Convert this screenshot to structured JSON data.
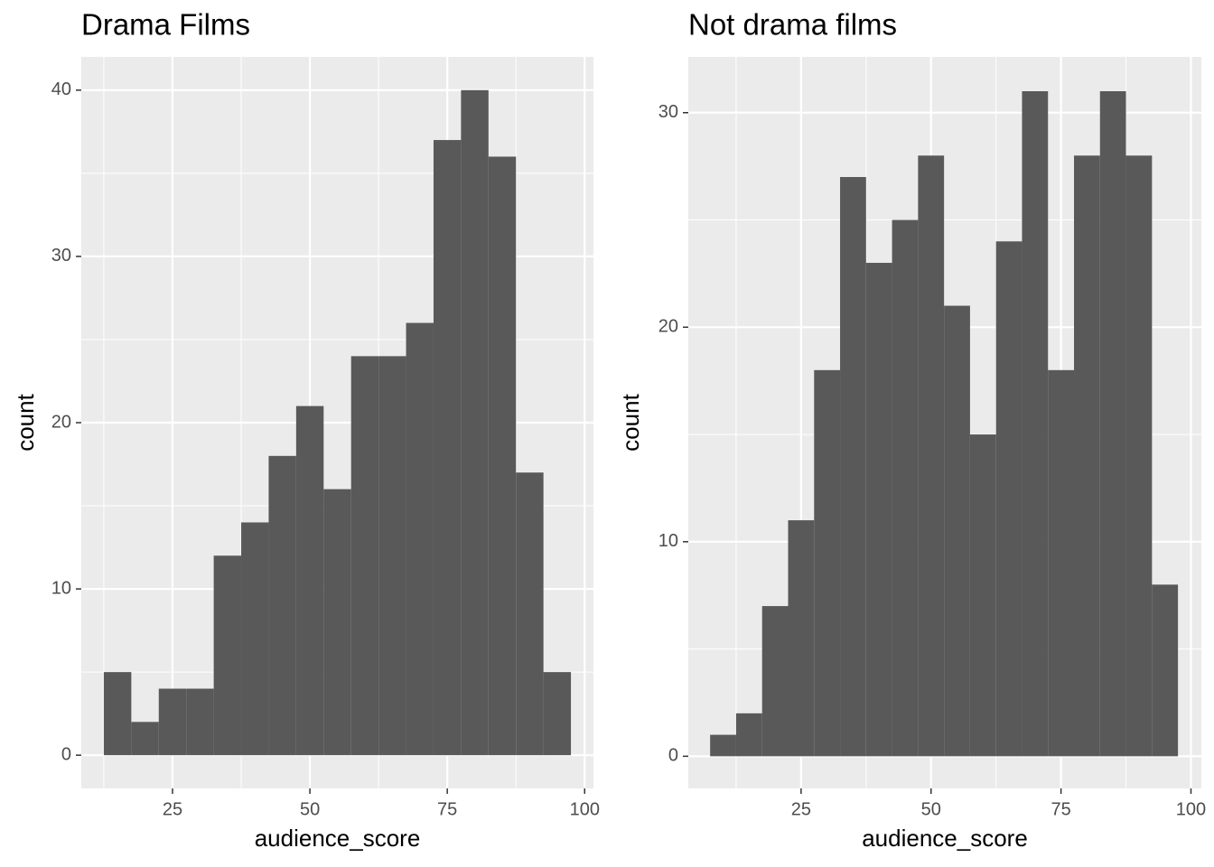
{
  "chart_data": [
    {
      "type": "histogram",
      "title": "Drama Films",
      "x_label": "audience_score",
      "y_label": "count",
      "color": "#595959",
      "bins": [
        12.5,
        17.5,
        22.5,
        27.5,
        32.5,
        37.5,
        42.5,
        47.5,
        52.5,
        57.5,
        62.5,
        67.5,
        72.5,
        77.5,
        82.5,
        87.5,
        92.5,
        97.5
      ],
      "values": [
        5,
        2,
        4,
        4,
        12,
        14,
        18,
        21,
        16,
        24,
        24,
        26,
        37,
        40,
        36,
        17,
        5
      ],
      "xlim": [
        8.4,
        101.6
      ],
      "xticks": [
        25,
        50,
        75,
        100
      ],
      "ylim": [
        -2,
        42
      ],
      "yticks": [
        0,
        10,
        20,
        30,
        40
      ],
      "grid": true
    },
    {
      "type": "histogram",
      "title": "Not drama films",
      "x_label": "audience_score",
      "y_label": "count",
      "color": "#595959",
      "bins": [
        7.5,
        12.5,
        17.5,
        22.5,
        27.5,
        32.5,
        37.5,
        42.5,
        47.5,
        52.5,
        57.5,
        62.5,
        67.5,
        72.5,
        77.5,
        82.5,
        87.5,
        92.5,
        97.5
      ],
      "values": [
        1,
        2,
        7,
        11,
        18,
        27,
        23,
        25,
        28,
        21,
        15,
        24,
        31,
        18,
        28,
        31,
        28,
        8
      ],
      "xlim": [
        3.3,
        102
      ],
      "xticks": [
        25,
        50,
        75,
        100
      ],
      "ylim": [
        -1.5,
        32.6
      ],
      "yticks": [
        0,
        10,
        20,
        30
      ],
      "grid": true
    }
  ]
}
